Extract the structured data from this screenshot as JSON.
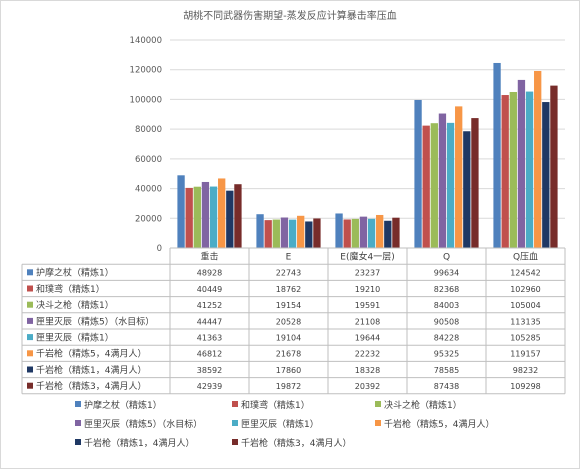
{
  "chart_data": {
    "type": "bar",
    "title": "胡桃不同武器伤害期望-蒸发反应计算暴击率压血",
    "xlabel": "",
    "ylabel": "",
    "ylim": [
      0,
      140000
    ],
    "yticks": [
      0,
      20000,
      40000,
      60000,
      80000,
      100000,
      120000,
      140000
    ],
    "grid": true,
    "legend_position": "bottom",
    "data_table": true,
    "categories": [
      "重击",
      "E",
      "E(魔女4一层)",
      "Q",
      "Q压血"
    ],
    "series": [
      {
        "name": "护摩之杖（精炼1）",
        "color": "#4F81BD",
        "values": [
          48928,
          22743,
          23237,
          99634,
          124542
        ]
      },
      {
        "name": "和璞鸢（精炼1）",
        "color": "#C0504D",
        "values": [
          40449,
          18762,
          19210,
          82368,
          102960
        ]
      },
      {
        "name": "决斗之枪（精炼1）",
        "color": "#9BBB59",
        "values": [
          41252,
          19154,
          19591,
          84003,
          105004
        ]
      },
      {
        "name": "匣里灭辰（精炼5）（水目标）",
        "color": "#8064A2",
        "values": [
          44447,
          20528,
          21108,
          90508,
          113135
        ]
      },
      {
        "name": "匣里灭辰（精炼1）",
        "color": "#4BACC6",
        "values": [
          41363,
          19104,
          19644,
          84228,
          105285
        ]
      },
      {
        "name": "千岩枪（精炼5，4满月人）",
        "color": "#F79646",
        "values": [
          46812,
          21678,
          22232,
          95325,
          119157
        ]
      },
      {
        "name": "千岩枪（精炼1，4满月人）",
        "color": "#1F3864",
        "values": [
          38592,
          17860,
          18328,
          78585,
          98232
        ]
      },
      {
        "name": "千岩枪（精炼3，4满月人）",
        "color": "#772C2A",
        "values": [
          42939,
          19872,
          20392,
          87438,
          109298
        ]
      }
    ]
  }
}
